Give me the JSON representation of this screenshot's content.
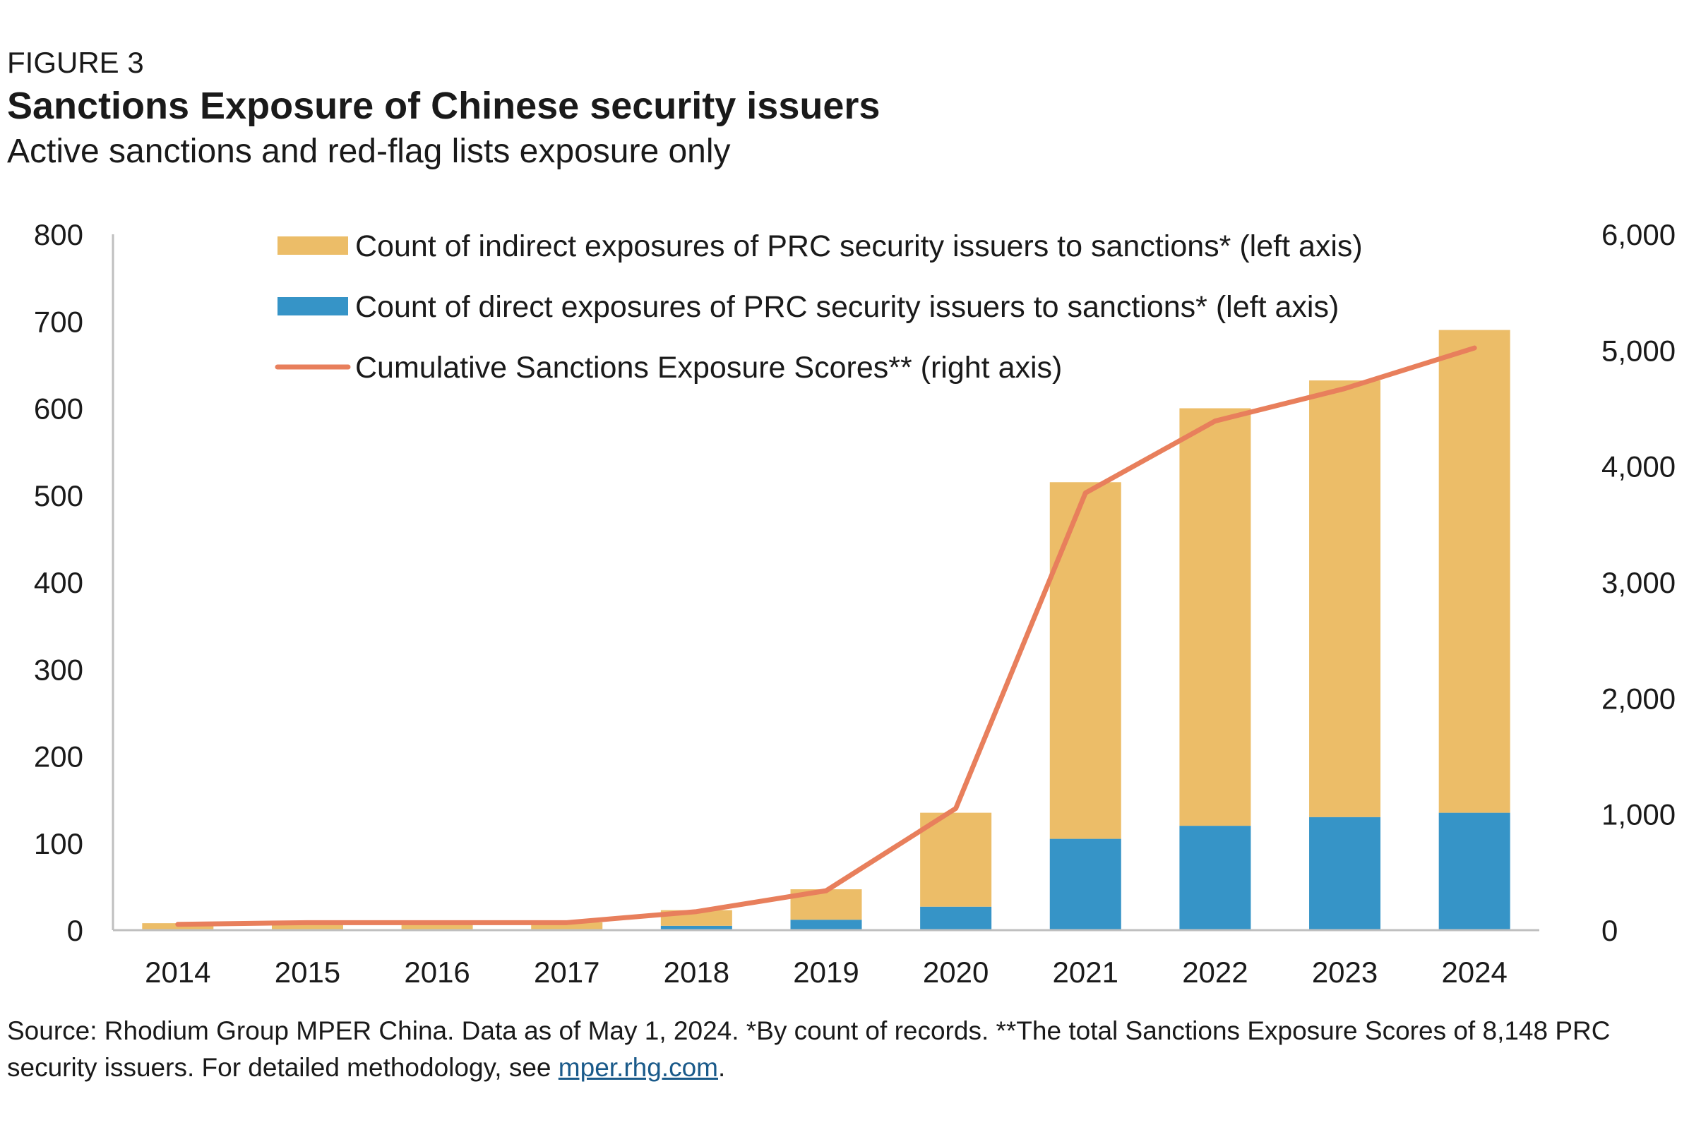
{
  "header": {
    "figure_label": "FIGURE 3",
    "title": "Sanctions Exposure of Chinese security issuers",
    "subtitle": "Active sanctions and red-flag lists exposure only"
  },
  "footer": {
    "source_text": "Source: Rhodium Group MPER China. Data as of May 1, 2024. *By count of records. **The total Sanctions Exposure Scores of 8,148 PRC security issuers. For detailed methodology, see ",
    "link_text": "mper.rhg.com",
    "trailing": "."
  },
  "colors": {
    "indirect": "#ecbd68",
    "direct": "#3694c7",
    "line": "#e87f5c",
    "axis": "#bfbfbf"
  },
  "chart_data": {
    "type": "bar",
    "stacked": true,
    "categories": [
      "2014",
      "2015",
      "2016",
      "2017",
      "2018",
      "2019",
      "2020",
      "2021",
      "2022",
      "2023",
      "2024"
    ],
    "series": [
      {
        "name": "Count of direct exposures of PRC security issuers to sanctions* (left axis)",
        "type": "bar",
        "axis": "left",
        "values": [
          0,
          0,
          0,
          0,
          5,
          12,
          27,
          105,
          120,
          130,
          135
        ]
      },
      {
        "name": "Count of indirect exposures of PRC security issuers to sanctions* (left axis)",
        "type": "bar",
        "axis": "left",
        "values": [
          8,
          9,
          9,
          9,
          18,
          35,
          108,
          410,
          480,
          502,
          555
        ]
      },
      {
        "name": "Cumulative Sanctions Exposure Scores** (right axis)",
        "type": "line",
        "axis": "right",
        "values": [
          50,
          65,
          65,
          65,
          160,
          340,
          1050,
          3770,
          4390,
          4670,
          5020
        ]
      }
    ],
    "left_axis": {
      "ylim": [
        0,
        800
      ],
      "ticks": [
        "0",
        "100",
        "200",
        "300",
        "400",
        "500",
        "600",
        "700",
        "800"
      ]
    },
    "right_axis": {
      "ylim": [
        0,
        6000
      ],
      "ticks": [
        "0",
        "1,000",
        "2,000",
        "3,000",
        "4,000",
        "5,000",
        "6,000"
      ]
    },
    "legend": {
      "placement": "top-left",
      "order": [
        "Count of indirect exposures of PRC security issuers to sanctions* (left axis)",
        "Count of direct exposures of PRC security issuers to sanctions* (left axis)",
        "Cumulative Sanctions Exposure Scores** (right axis)"
      ]
    },
    "grid": false
  }
}
